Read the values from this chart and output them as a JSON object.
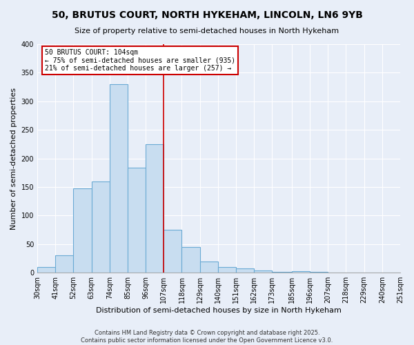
{
  "title": "50, BRUTUS COURT, NORTH HYKEHAM, LINCOLN, LN6 9YB",
  "subtitle": "Size of property relative to semi-detached houses in North Hykeham",
  "xlabel": "Distribution of semi-detached houses by size in North Hykeham",
  "ylabel": "Number of semi-detached properties",
  "bin_labels": [
    "30sqm",
    "41sqm",
    "52sqm",
    "63sqm",
    "74sqm",
    "85sqm",
    "96sqm",
    "107sqm",
    "118sqm",
    "129sqm",
    "140sqm",
    "151sqm",
    "162sqm",
    "173sqm",
    "185sqm",
    "196sqm",
    "207sqm",
    "218sqm",
    "229sqm",
    "240sqm",
    "251sqm"
  ],
  "bin_edges": [
    30,
    41,
    52,
    63,
    74,
    85,
    96,
    107,
    118,
    129,
    140,
    151,
    162,
    173,
    185,
    196,
    207,
    218,
    229,
    240,
    251
  ],
  "bar_heights": [
    10,
    30,
    148,
    160,
    330,
    184,
    225,
    75,
    45,
    20,
    10,
    7,
    4,
    2,
    3,
    1,
    0,
    0,
    0,
    0
  ],
  "bar_color": "#c8ddf0",
  "bar_edge_color": "#6aaad4",
  "vline_x": 107,
  "vline_color": "#cc0000",
  "annotation_title": "50 BRUTUS COURT: 104sqm",
  "annotation_line1": "← 75% of semi-detached houses are smaller (935)",
  "annotation_line2": "21% of semi-detached houses are larger (257) →",
  "annotation_box_edgecolor": "#cc0000",
  "ylim": [
    0,
    400
  ],
  "yticks": [
    0,
    50,
    100,
    150,
    200,
    250,
    300,
    350,
    400
  ],
  "footer1": "Contains HM Land Registry data © Crown copyright and database right 2025.",
  "footer2": "Contains public sector information licensed under the Open Government Licence v3.0.",
  "bg_color": "#e8eef8",
  "plot_bg_color": "#e8eef8",
  "grid_color": "#ffffff",
  "title_fontsize": 10,
  "subtitle_fontsize": 8,
  "axis_label_fontsize": 8,
  "tick_fontsize": 7,
  "annotation_fontsize": 7,
  "footer_fontsize": 6
}
